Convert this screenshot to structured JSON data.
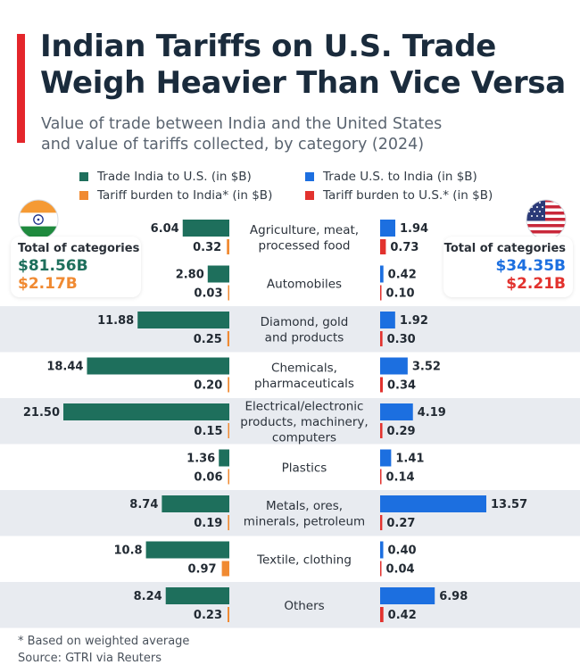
{
  "header": {
    "title_line1": "Indian Tariffs on U.S. Trade",
    "title_line2": "Weigh Heavier Than Vice Versa",
    "subtitle_line1": "Value of trade between India and the United States",
    "subtitle_line2": "and value of tariffs collected, by category (2024)"
  },
  "legend": [
    {
      "label": "Trade India to U.S. (in $B)",
      "color": "#1e6f5c"
    },
    {
      "label": "Trade U.S. to India (in $B)",
      "color": "#1c6fe0"
    },
    {
      "label": "Tariff burden to India* (in $B)",
      "color": "#f08a32"
    },
    {
      "label": "Tariff burden to U.S.* (in $B)",
      "color": "#e2322e"
    }
  ],
  "india_panel": {
    "label": "Total of  categories",
    "trade_total": "$81.56B",
    "tariff_total": "$2.17B"
  },
  "us_panel": {
    "label": "Total of  categories",
    "trade_total": "$34.35B",
    "tariff_total": "$2.21B"
  },
  "colors": {
    "india_trade": "#1e6f5c",
    "india_tariff": "#f08a32",
    "us_trade": "#1c6fe0",
    "us_tariff": "#e2322e",
    "row_shade": "#e8ebf0"
  },
  "chart_data": {
    "type": "bar",
    "title": "Indian Tariffs on U.S. Trade Weigh Heavier Than Vice Versa",
    "categories": [
      [
        "Agriculture, meat,",
        "processed food"
      ],
      [
        "Automobiles"
      ],
      [
        "Diamond, gold",
        "and products"
      ],
      [
        "Chemicals,",
        "pharmaceuticals"
      ],
      [
        "Electrical/electronic",
        "products, machinery,",
        "computers"
      ],
      [
        "Plastics"
      ],
      [
        "Metals, ores,",
        "minerals, petroleum"
      ],
      [
        "Textile, clothing"
      ],
      [
        "Others"
      ]
    ],
    "series": [
      {
        "name": "Trade India to U.S. (in $B)",
        "values": [
          6.04,
          2.8,
          11.88,
          18.44,
          21.5,
          1.36,
          8.74,
          10.8,
          8.24
        ],
        "labels": [
          "6.04",
          "2.80",
          "11.88",
          "18.44",
          "21.50",
          "1.36",
          "8.74",
          "10.8",
          "8.24"
        ]
      },
      {
        "name": "Tariff burden to India* (in $B)",
        "values": [
          0.32,
          0.03,
          0.25,
          0.2,
          0.15,
          0.06,
          0.19,
          0.97,
          0.23
        ],
        "labels": [
          "0.32",
          "0.03",
          "0.25",
          "0.20",
          "0.15",
          "0.06",
          "0.19",
          "0.97",
          "0.23"
        ]
      },
      {
        "name": "Trade U.S. to India (in $B)",
        "values": [
          1.94,
          0.42,
          1.92,
          3.52,
          4.19,
          1.41,
          13.57,
          0.4,
          6.98
        ],
        "labels": [
          "1.94",
          "0.42",
          "1.92",
          "3.52",
          "4.19",
          "1.41",
          "13.57",
          "0.40",
          "6.98"
        ]
      },
      {
        "name": "Tariff burden to U.S.* (in $B)",
        "values": [
          0.73,
          0.1,
          0.3,
          0.34,
          0.29,
          0.14,
          0.27,
          0.04,
          0.42
        ],
        "labels": [
          "0.73",
          "0.10",
          "0.30",
          "0.34",
          "0.29",
          "0.14",
          "0.27",
          "0.04",
          "0.42"
        ]
      }
    ],
    "shaded_rows": [
      2,
      4,
      6,
      8
    ]
  },
  "footnote": "* Based on weighted average",
  "source": "Source: GTRI via Reuters"
}
